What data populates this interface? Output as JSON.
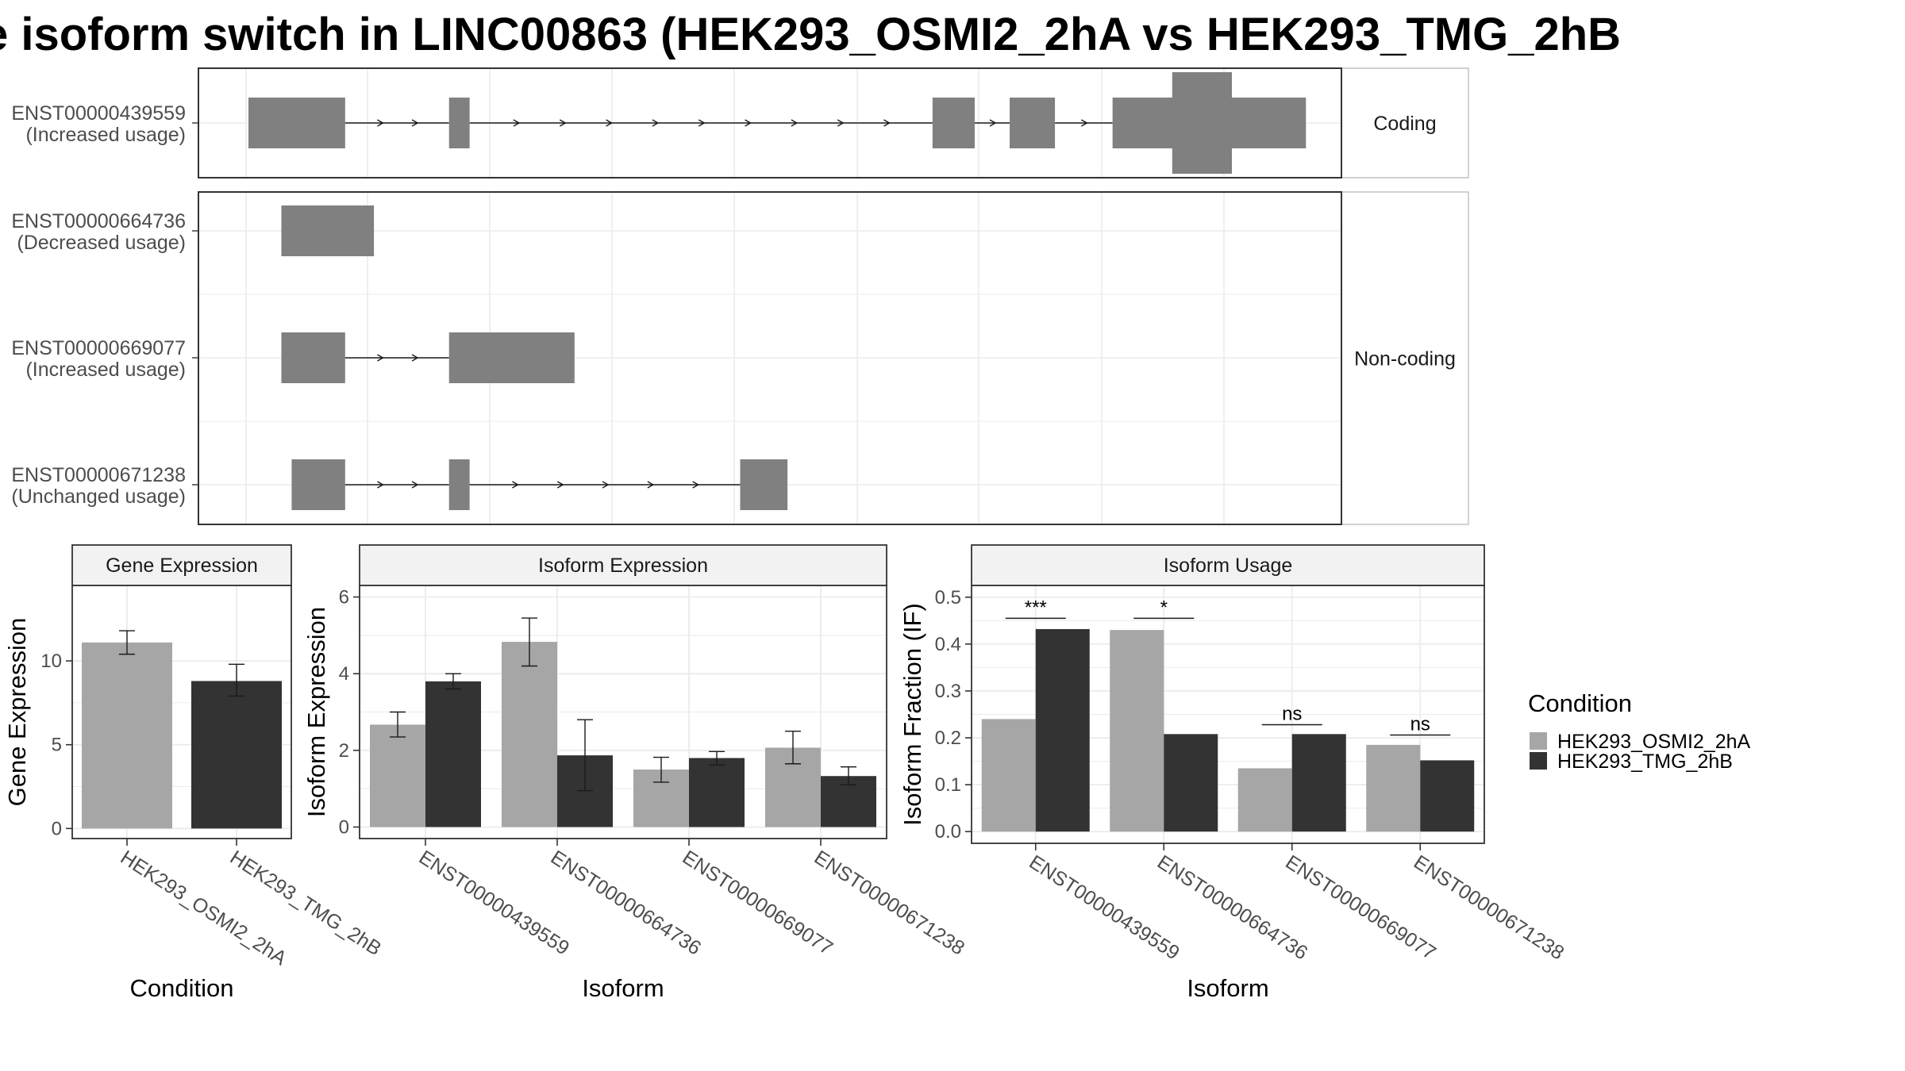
{
  "chart_data": [
    {
      "type": "gene-structure",
      "title": "e isoform switch in LINC00863 (HEK293_OSMI2_2hA vs HEK293_TMG_2hB",
      "x_range": [
        0,
        10000
      ],
      "categories": [
        {
          "label": "Coding",
          "isoforms": [
            {
              "id": "ENST00000439559",
              "usage": "(Increased usage)",
              "exons": [
                [
                  0,
                  940,
                  "normal"
                ],
                [
                  1950,
                  2150,
                  "normal"
                ],
                [
                  6650,
                  7060,
                  "normal"
                ],
                [
                  7400,
                  7840,
                  "normal"
                ],
                [
                  8400,
                  10280,
                  "normal"
                ],
                [
                  8980,
                  9560,
                  "tall"
                ]
              ]
            }
          ]
        },
        {
          "label": "Non-coding",
          "isoforms": [
            {
              "id": "ENST00000664736",
              "usage": "(Decreased usage)",
              "exons": [
                [
                  320,
                  1220,
                  "normal"
                ]
              ]
            },
            {
              "id": "ENST00000669077",
              "usage": "(Increased usage)",
              "exons": [
                [
                  320,
                  940,
                  "normal"
                ],
                [
                  1950,
                  3170,
                  "normal"
                ]
              ]
            },
            {
              "id": "ENST00000671238",
              "usage": "(Unchanged usage)",
              "exons": [
                [
                  420,
                  940,
                  "normal"
                ],
                [
                  1950,
                  2150,
                  "normal"
                ],
                [
                  4780,
                  5240,
                  "normal"
                ]
              ]
            }
          ]
        }
      ]
    },
    {
      "type": "bar",
      "title": "Gene Expression",
      "xlabel": "Condition",
      "ylabel": "Gene Expression",
      "ylim": [
        -0.6,
        14.5
      ],
      "yticks": [
        0,
        5,
        10
      ],
      "categories": [
        "HEK293_OSMI2_2hA",
        "HEK293_TMG_2hB"
      ],
      "series": [
        {
          "values": [
            11.1,
            8.8
          ],
          "errors": [
            [
              10.4,
              11.8
            ],
            [
              7.9,
              9.8
            ]
          ]
        }
      ]
    },
    {
      "type": "bar",
      "title": "Isoform Expression",
      "xlabel": "Isoform",
      "ylabel": "Isoform Expression",
      "ylim": [
        -0.3,
        6.3
      ],
      "yticks": [
        0,
        2,
        4,
        6
      ],
      "categories": [
        "ENST00000439559",
        "ENST00000664736",
        "ENST00000669077",
        "ENST00000671238"
      ],
      "series": [
        {
          "name": "HEK293_OSMI2_2hA",
          "values": [
            2.67,
            4.83,
            1.5,
            2.07
          ],
          "errors": [
            [
              2.35,
              3.0
            ],
            [
              4.2,
              5.45
            ],
            [
              1.17,
              1.82
            ],
            [
              1.65,
              2.5
            ]
          ]
        },
        {
          "name": "HEK293_TMG_2hB",
          "values": [
            3.8,
            1.87,
            1.8,
            1.33
          ],
          "errors": [
            [
              3.6,
              4.0
            ],
            [
              0.95,
              2.8
            ],
            [
              1.62,
              1.97
            ],
            [
              1.1,
              1.57
            ]
          ]
        }
      ]
    },
    {
      "type": "bar",
      "title": "Isoform Usage",
      "xlabel": "Isoform",
      "ylabel": "Isoform Fraction (IF)",
      "ylim": [
        -0.025,
        0.525
      ],
      "yticks": [
        0.0,
        0.1,
        0.2,
        0.3,
        0.4,
        0.5
      ],
      "ytick_labels": [
        "0.0",
        "0.1",
        "0.2",
        "0.3",
        "0.4",
        "0.5"
      ],
      "categories": [
        "ENST00000439559",
        "ENST00000664736",
        "ENST00000669077",
        "ENST00000671238"
      ],
      "series": [
        {
          "name": "HEK293_OSMI2_2hA",
          "values": [
            0.24,
            0.43,
            0.135,
            0.185
          ]
        },
        {
          "name": "HEK293_TMG_2hB",
          "values": [
            0.432,
            0.208,
            0.208,
            0.152
          ]
        }
      ],
      "significance": [
        {
          "label": "***",
          "y": 0.455
        },
        {
          "label": "*",
          "y": 0.455
        },
        {
          "label": "ns",
          "y": 0.228
        },
        {
          "label": "ns",
          "y": 0.206
        }
      ]
    }
  ],
  "legend": {
    "title": "Condition",
    "position": "right",
    "items": [
      {
        "label": "HEK293_OSMI2_2hA",
        "color": "#a6a6a6"
      },
      {
        "label": "HEK293_TMG_2hB",
        "color": "#333333"
      }
    ]
  },
  "colors": {
    "exon": "#808080",
    "intron": "#1a1a1a",
    "grid": "#ebebeb",
    "strip": "#f2f2f2",
    "frame": "#333333",
    "axis_text": "#4d4d4d"
  }
}
